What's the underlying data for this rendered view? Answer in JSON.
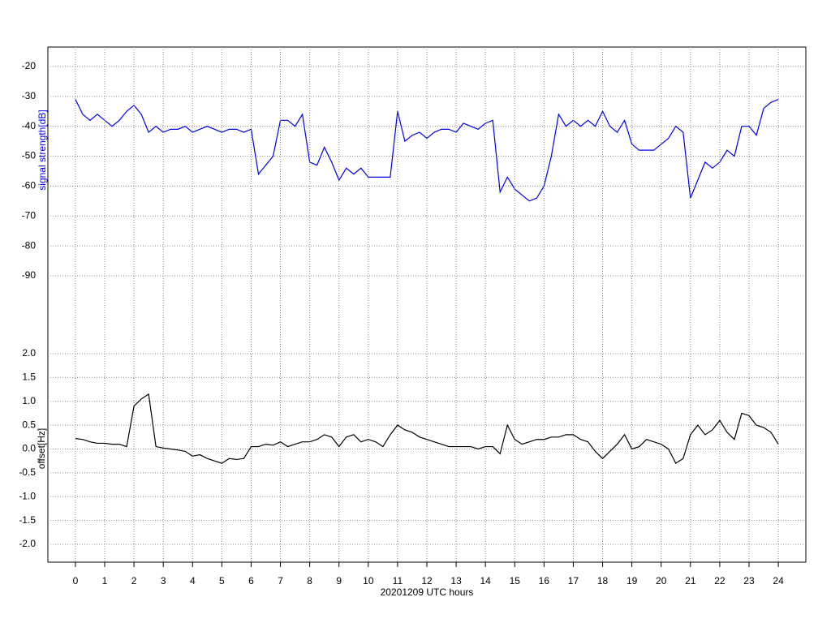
{
  "chart_data": [
    {
      "type": "line",
      "ylabel": "signal strength[dB]",
      "x": [
        0,
        0.25,
        0.5,
        0.75,
        1,
        1.25,
        1.5,
        1.75,
        2,
        2.25,
        2.5,
        2.75,
        3,
        3.25,
        3.5,
        3.75,
        4,
        4.25,
        4.5,
        4.75,
        5,
        5.25,
        5.5,
        5.75,
        6,
        6.25,
        6.5,
        6.75,
        7,
        7.25,
        7.5,
        7.75,
        8,
        8.25,
        8.5,
        8.75,
        9,
        9.25,
        9.5,
        9.75,
        10,
        10.25,
        10.5,
        10.75,
        11,
        11.25,
        11.5,
        11.75,
        12,
        12.25,
        12.5,
        12.75,
        13,
        13.25,
        13.5,
        13.75,
        14,
        14.25,
        14.5,
        14.75,
        15,
        15.25,
        15.5,
        15.75,
        16,
        16.25,
        16.5,
        16.75,
        17,
        17.25,
        17.5,
        17.75,
        18,
        18.25,
        18.5,
        18.75,
        19,
        19.25,
        19.5,
        19.75,
        20,
        20.25,
        20.5,
        20.75,
        21,
        21.25,
        21.5,
        21.75,
        22,
        22.25,
        22.5,
        22.75,
        23,
        23.25,
        23.5,
        23.75,
        24
      ],
      "series": [
        {
          "color": "#0000ee",
          "values": [
            -31,
            -36,
            -38,
            -36,
            -38,
            -40,
            -38,
            -35,
            -33,
            -36,
            -42,
            -40,
            -42,
            -41,
            -41,
            -40,
            -42,
            -41,
            -40,
            -41,
            -42,
            -41,
            -41,
            -42,
            -41,
            -56,
            -53,
            -50,
            -38,
            -38,
            -40,
            -36,
            -52,
            -53,
            -47,
            -52,
            -58,
            -54,
            -56,
            -54,
            -57,
            -57,
            -57,
            -57,
            -35,
            -45,
            -43,
            -42,
            -44,
            -42,
            -41,
            -41,
            -42,
            -39,
            -40,
            -41,
            -39,
            -38,
            -62,
            -57,
            -61,
            -63,
            -65,
            -64,
            -60,
            -50,
            -36,
            -40,
            -38,
            -40,
            -38,
            -40,
            -35,
            -40,
            -42,
            -38,
            -46,
            -48,
            -48,
            -48,
            -46,
            -44,
            -40,
            -42,
            -64,
            -58,
            -52,
            -54,
            -52,
            -48,
            -50,
            -40,
            -40,
            -43,
            -34,
            -32,
            -31
          ]
        }
      ],
      "xlim": [
        -0.94,
        24.94
      ],
      "ylim": [
        -95,
        -13.5
      ],
      "yticks": [
        -20,
        -30,
        -40,
        -50,
        -60,
        -70,
        -80,
        -90
      ],
      "grid": true
    },
    {
      "type": "line",
      "ylabel": "offset[Hz]",
      "xlabel": "20201209 UTC hours",
      "x": [
        0,
        0.25,
        0.5,
        0.75,
        1,
        1.25,
        1.5,
        1.75,
        2,
        2.25,
        2.5,
        2.75,
        3,
        3.25,
        3.5,
        3.75,
        4,
        4.25,
        4.5,
        4.75,
        5,
        5.25,
        5.5,
        5.75,
        6,
        6.25,
        6.5,
        6.75,
        7,
        7.25,
        7.5,
        7.75,
        8,
        8.25,
        8.5,
        8.75,
        9,
        9.25,
        9.5,
        9.75,
        10,
        10.25,
        10.5,
        10.75,
        11,
        11.25,
        11.5,
        11.75,
        12,
        12.25,
        12.5,
        12.75,
        13,
        13.25,
        13.5,
        13.75,
        14,
        14.25,
        14.5,
        14.75,
        15,
        15.25,
        15.5,
        15.75,
        16,
        16.25,
        16.5,
        16.75,
        17,
        17.25,
        17.5,
        17.75,
        18,
        18.25,
        18.5,
        18.75,
        19,
        19.25,
        19.5,
        19.75,
        20,
        20.25,
        20.5,
        20.75,
        21,
        21.25,
        21.5,
        21.75,
        22,
        22.25,
        22.5,
        22.75,
        23,
        23.25,
        23.5,
        23.75,
        24
      ],
      "series": [
        {
          "color": "#000000",
          "values": [
            0.22,
            0.2,
            0.15,
            0.12,
            0.12,
            0.1,
            0.1,
            0.05,
            0.9,
            1.05,
            1.15,
            0.05,
            0.02,
            0.0,
            -0.02,
            -0.05,
            -0.15,
            -0.12,
            -0.2,
            -0.25,
            -0.3,
            -0.2,
            -0.22,
            -0.2,
            0.05,
            0.05,
            0.1,
            0.08,
            0.15,
            0.05,
            0.1,
            0.15,
            0.15,
            0.2,
            0.3,
            0.25,
            0.05,
            0.25,
            0.3,
            0.15,
            0.2,
            0.15,
            0.05,
            0.3,
            0.5,
            0.4,
            0.35,
            0.25,
            0.2,
            0.15,
            0.1,
            0.05,
            0.05,
            0.05,
            0.05,
            0.0,
            0.05,
            0.05,
            -0.1,
            0.5,
            0.2,
            0.1,
            0.15,
            0.2,
            0.2,
            0.25,
            0.25,
            0.3,
            0.3,
            0.2,
            0.15,
            -0.05,
            -0.2,
            -0.05,
            0.1,
            0.3,
            0.0,
            0.05,
            0.2,
            0.15,
            0.1,
            0.0,
            -0.3,
            -0.2,
            0.3,
            0.5,
            0.3,
            0.4,
            0.6,
            0.35,
            0.2,
            0.75,
            0.7,
            0.5,
            0.45,
            0.35,
            0.1
          ]
        }
      ],
      "xlim": [
        -0.94,
        24.94
      ],
      "ylim": [
        -2.4,
        2.5
      ],
      "xticks": [
        0,
        1,
        2,
        3,
        4,
        5,
        6,
        7,
        8,
        9,
        10,
        11,
        12,
        13,
        14,
        15,
        16,
        17,
        18,
        19,
        20,
        21,
        22,
        23,
        24
      ],
      "yticks": [
        {
          "value": 2,
          "label": "2.0"
        },
        1.5,
        {
          "value": 1,
          "label": "1.0"
        },
        0.5,
        {
          "value": 0,
          "label": "0.0"
        },
        -0.5,
        {
          "value": -1,
          "label": "-1.0"
        },
        -1.5,
        {
          "value": -2,
          "label": "-2.0"
        }
      ],
      "grid": true
    }
  ]
}
